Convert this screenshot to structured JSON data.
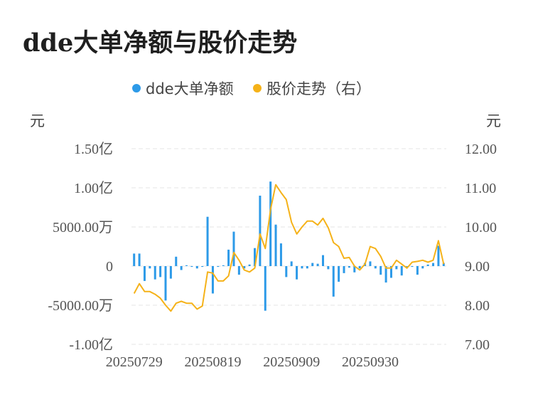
{
  "title": "dde大单净额与股价走势",
  "chart_data": {
    "type": "bar+line",
    "legend_position": "top-center",
    "legend": [
      {
        "name": "dde大单净额",
        "color": "#2d9ae8"
      },
      {
        "name": "股价走势（右）",
        "color": "#f5b219"
      }
    ],
    "left_axis": {
      "unit": "元",
      "ticks": [
        {
          "value": 150000000,
          "label": "1.50亿"
        },
        {
          "value": 100000000,
          "label": "1.00亿"
        },
        {
          "value": 50000000,
          "label": "5000.00万"
        },
        {
          "value": 0,
          "label": "0"
        },
        {
          "value": -50000000,
          "label": "-5000.00万"
        },
        {
          "value": -100000000,
          "label": "-1.00亿"
        }
      ],
      "range": [
        -100000000,
        150000000
      ]
    },
    "right_axis": {
      "unit": "元",
      "ticks": [
        {
          "value": 12,
          "label": "12.00"
        },
        {
          "value": 11,
          "label": "11.00"
        },
        {
          "value": 10,
          "label": "10.00"
        },
        {
          "value": 9,
          "label": "9.00"
        },
        {
          "value": 8,
          "label": "8.00"
        },
        {
          "value": 7,
          "label": "7.00"
        }
      ],
      "range": [
        7,
        12
      ]
    },
    "x_tick_labels": [
      {
        "index": 0,
        "label": "20250729"
      },
      {
        "index": 15,
        "label": "20250819"
      },
      {
        "index": 30,
        "label": "20250909"
      },
      {
        "index": 45,
        "label": "20250930"
      }
    ],
    "grid": true,
    "dde_values": [
      16000000,
      16000000,
      -19000000,
      -3000000,
      -17000000,
      -14000000,
      -44000000,
      -16000000,
      12000000,
      -5000000,
      1000000,
      -1000000,
      -3000000,
      -1000000,
      63000000,
      -35000000,
      -1000000,
      1000000,
      21000000,
      44000000,
      -11000000,
      -3000000,
      2000000,
      23000000,
      90000000,
      -57000000,
      108000000,
      53000000,
      29000000,
      -14000000,
      6000000,
      -17000000,
      -3000000,
      -3000000,
      4000000,
      3000000,
      14000000,
      -4000000,
      -39000000,
      -20000000,
      -9000000,
      -2000000,
      -8000000,
      -3000000,
      4000000,
      6000000,
      -3000000,
      -11000000,
      -21000000,
      -15000000,
      -4000000,
      -12000000,
      -2000000,
      -1000000,
      -11000000,
      -3000000,
      2000000,
      4000000,
      26000000,
      4000000
    ],
    "price_values": [
      8.3,
      8.55,
      8.35,
      8.35,
      8.28,
      8.18,
      8.0,
      7.85,
      8.05,
      8.1,
      8.05,
      8.05,
      7.9,
      7.98,
      8.85,
      8.82,
      8.62,
      8.62,
      8.75,
      9.35,
      9.15,
      8.9,
      8.85,
      8.95,
      9.82,
      9.45,
      10.45,
      11.08,
      10.88,
      10.7,
      10.12,
      9.82,
      10.0,
      10.15,
      10.15,
      10.05,
      10.22,
      9.98,
      9.6,
      9.5,
      9.2,
      9.22,
      9.0,
      8.9,
      9.05,
      9.5,
      9.45,
      9.25,
      8.95,
      8.95,
      9.15,
      9.05,
      8.95,
      9.1,
      9.12,
      9.15,
      9.1,
      9.15,
      9.65,
      9.05
    ]
  }
}
